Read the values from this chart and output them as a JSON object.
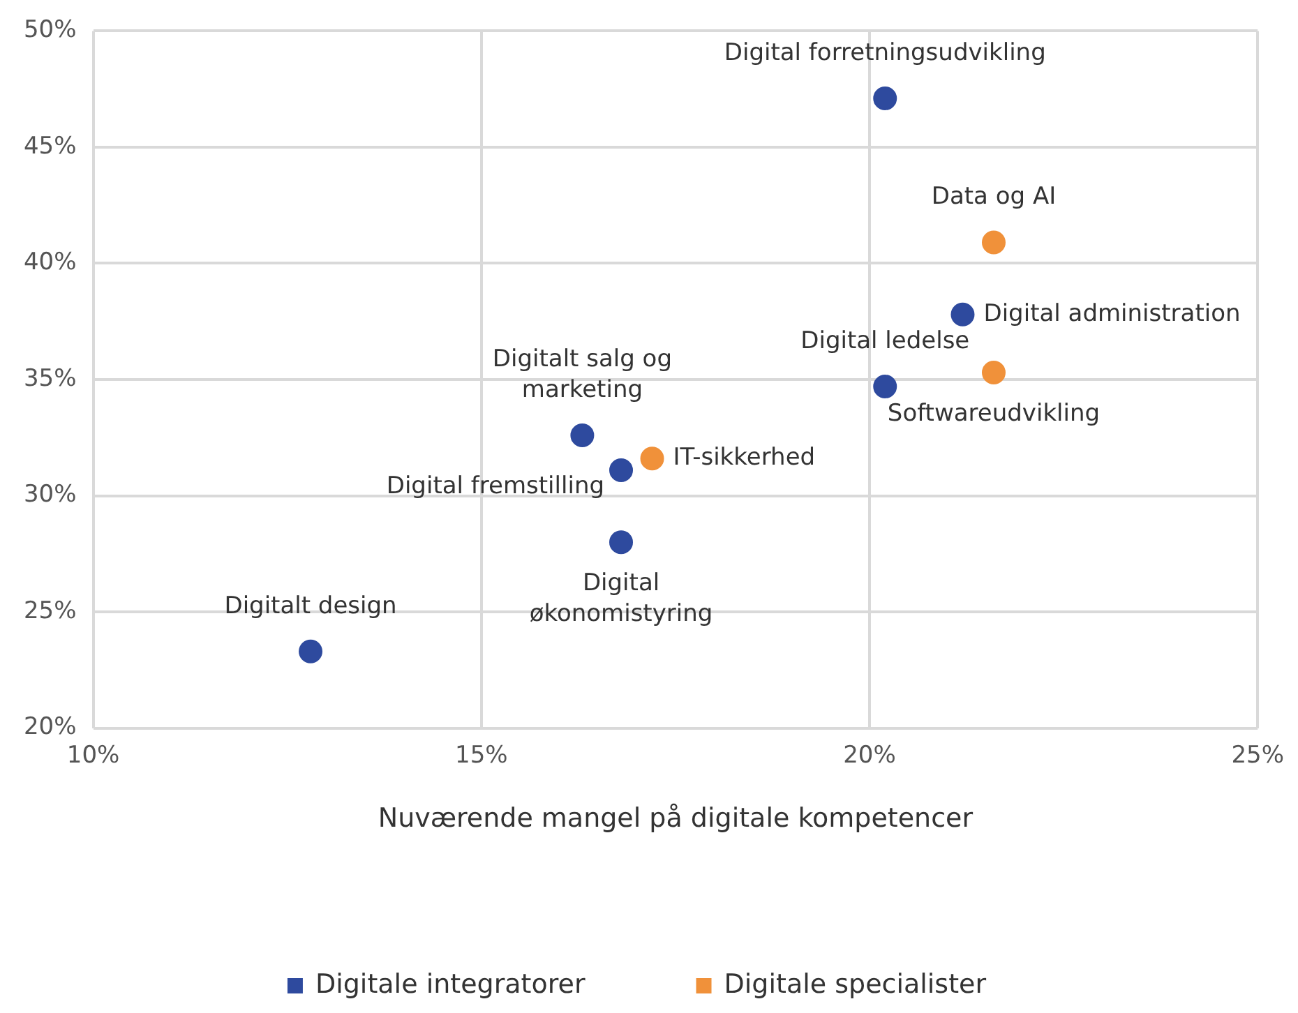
{
  "chart_data": {
    "type": "scatter",
    "xlabel": "Nuværende mangel på digitale kompetencer",
    "xlim": [
      10,
      25
    ],
    "xticks": [
      {
        "value": 10,
        "label": "10%"
      },
      {
        "value": 15,
        "label": "15%"
      },
      {
        "value": 20,
        "label": "20%"
      },
      {
        "value": 25,
        "label": "25%"
      }
    ],
    "ylim": [
      20,
      50
    ],
    "yticks": [
      {
        "value": 20,
        "label": "20%"
      },
      {
        "value": 25,
        "label": "25%"
      },
      {
        "value": 30,
        "label": "30%"
      },
      {
        "value": 35,
        "label": "35%"
      },
      {
        "value": 40,
        "label": "40%"
      },
      {
        "value": 45,
        "label": "45%"
      },
      {
        "value": 50,
        "label": "50%"
      }
    ],
    "grid": true,
    "legend": "bottom",
    "marker": "circle",
    "series": [
      {
        "name": "Digitale integratorer",
        "color": "#2e4a9e",
        "x": [
          20.2,
          21.2,
          20.2,
          16.3,
          16.8,
          16.8,
          12.8
        ],
        "values": [
          47.1,
          37.8,
          34.7,
          32.6,
          31.1,
          28.0,
          23.3
        ]
      },
      {
        "name": "Digitale specialister",
        "color": "#f0913a",
        "x": [
          21.6,
          21.6,
          17.2
        ],
        "values": [
          40.9,
          35.3,
          31.6
        ]
      }
    ],
    "annotations": [
      {
        "text": "Digital forretningsudvikling",
        "x": 20.2,
        "y": 47.1
      },
      {
        "text": "Digital administration",
        "x": 21.2,
        "y": 37.8
      },
      {
        "text": "Digital ledelse",
        "x": 20.2,
        "y": 34.7
      },
      {
        "text": "Digitalt salg og marketing",
        "x": 16.3,
        "y": 32.6
      },
      {
        "text": "Digital fremstilling",
        "x": 16.8,
        "y": 31.1
      },
      {
        "text": "Digital økonomistyring",
        "x": 16.8,
        "y": 28.0
      },
      {
        "text": "Digitalt design",
        "x": 12.8,
        "y": 23.3
      },
      {
        "text": "Data og AI",
        "x": 21.6,
        "y": 40.9
      },
      {
        "text": "Softwareudvikling",
        "x": 21.6,
        "y": 35.3
      },
      {
        "text": "IT-sikkerhed",
        "x": 17.2,
        "y": 31.6
      }
    ]
  }
}
